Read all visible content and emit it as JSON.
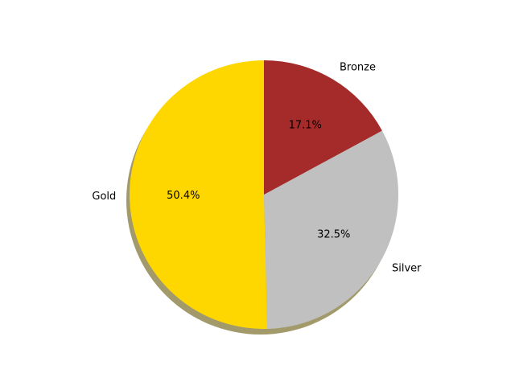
{
  "chart_data": {
    "type": "pie",
    "slices": [
      {
        "label": "Gold",
        "value": 50.4,
        "pct_label": "50.4%",
        "color": "#ffd700"
      },
      {
        "label": "Silver",
        "value": 32.5,
        "pct_label": "32.5%",
        "color": "#c0c0c0"
      },
      {
        "label": "Bronze",
        "value": 17.1,
        "pct_label": "17.1%",
        "color": "#a52a2a"
      }
    ],
    "start_angle_deg": 90,
    "direction": "counterclockwise",
    "shadow": true,
    "shadow_color": "#a39a6b",
    "title": ""
  }
}
